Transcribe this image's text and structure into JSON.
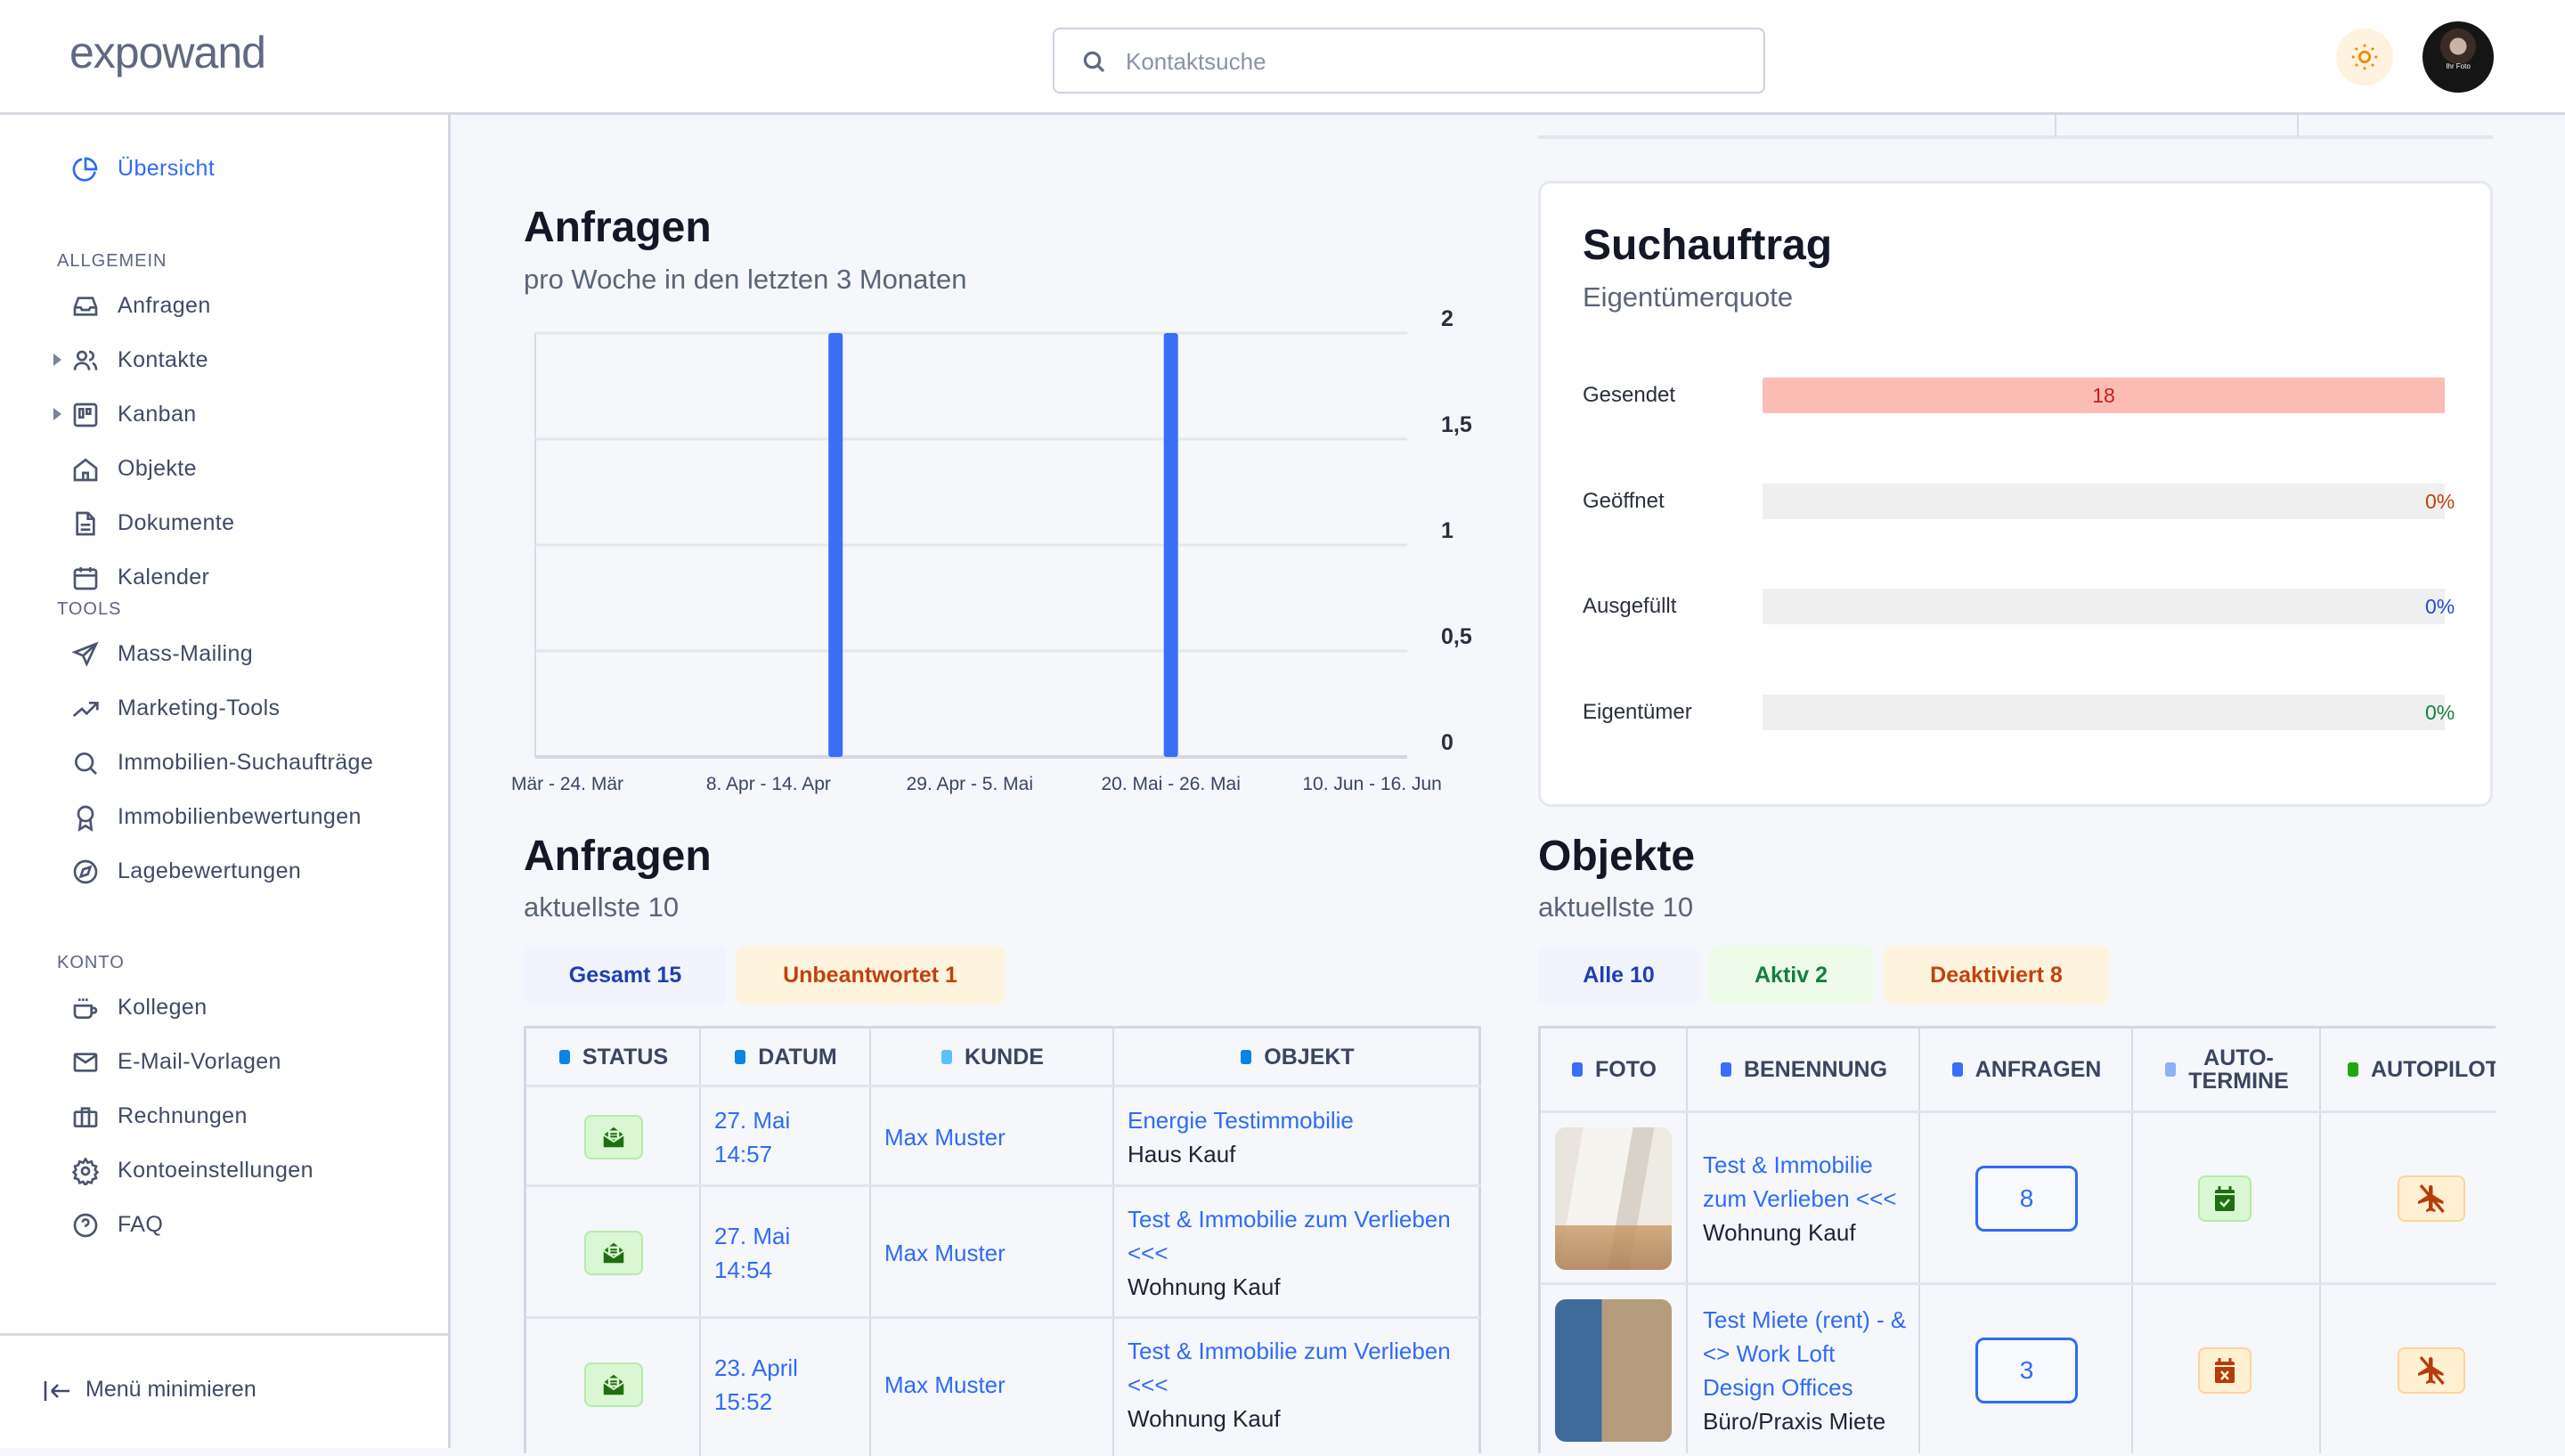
{
  "header": {
    "logo": "expowand",
    "search_placeholder": "Kontaktsuche",
    "theme_icon": "sun-icon",
    "avatar_caption": "Ihr Foto"
  },
  "sidebar": {
    "active": "Übersicht",
    "overview": "Übersicht",
    "sections": [
      {
        "title": "ALLGEMEIN",
        "items": [
          {
            "label": "Anfragen",
            "icon": "inbox-icon"
          },
          {
            "label": "Kontakte",
            "icon": "users-icon",
            "expandable": true
          },
          {
            "label": "Kanban",
            "icon": "kanban-icon",
            "expandable": true
          },
          {
            "label": "Objekte",
            "icon": "home-icon"
          },
          {
            "label": "Dokumente",
            "icon": "document-icon"
          },
          {
            "label": "Kalender",
            "icon": "calendar-icon"
          }
        ]
      },
      {
        "title": "TOOLS",
        "items": [
          {
            "label": "Mass-Mailing",
            "icon": "send-icon"
          },
          {
            "label": "Marketing-Tools",
            "icon": "trending-up-icon"
          },
          {
            "label": "Immobilien-Suchaufträge",
            "icon": "search-icon"
          },
          {
            "label": "Immobilienbewertungen",
            "icon": "award-icon"
          },
          {
            "label": "Lagebewertungen",
            "icon": "compass-icon"
          }
        ]
      },
      {
        "title": "KONTO",
        "items": [
          {
            "label": "Kollegen",
            "icon": "coffee-icon"
          },
          {
            "label": "E-Mail-Vorlagen",
            "icon": "mail-icon"
          },
          {
            "label": "Rechnungen",
            "icon": "briefcase-icon"
          },
          {
            "label": "Kontoeinstellungen",
            "icon": "gear-icon"
          },
          {
            "label": "FAQ",
            "icon": "help-circle-icon"
          }
        ]
      }
    ],
    "minimize_label": "Menü minimieren"
  },
  "anfragen_chart": {
    "title": "Anfragen",
    "subtitle": "pro Woche in den letzten 3 Monaten"
  },
  "chart_data": {
    "type": "bar",
    "categories": [
      "Mär - 24. Mär",
      "",
      "",
      "8. Apr - 14. Apr",
      "",
      "",
      "29. Apr - 5. Mai",
      "",
      "",
      "20. Mai - 26. Mai",
      "",
      "",
      "10. Jun - 16. Jun"
    ],
    "values": [
      0,
      0,
      0,
      0,
      2,
      0,
      0,
      0,
      0,
      2,
      0,
      0,
      0
    ],
    "y_ticks": [
      "0",
      "0,5",
      "1",
      "1,5",
      "2"
    ],
    "ylim": [
      0,
      2
    ],
    "y_axis_side": "right",
    "grid": true,
    "color": "#3b6ef6",
    "title": "",
    "xlabel": "",
    "ylabel": ""
  },
  "suchauftrag": {
    "title": "Suchauftrag",
    "subtitle": "Eigentümerquote",
    "rows": [
      {
        "label": "Gesendet",
        "value": "18",
        "fill": 1.0,
        "color": "#c81e1e"
      },
      {
        "label": "Geöffnet",
        "value": "0%",
        "fill": 0,
        "color": "#c2410c"
      },
      {
        "label": "Ausgefüllt",
        "value": "0%",
        "fill": 0,
        "color": "#1d4ed8"
      },
      {
        "label": "Eigentümer",
        "value": "0%",
        "fill": 0,
        "color": "#15803d"
      }
    ]
  },
  "anfragen_list": {
    "title": "Anfragen",
    "subtitle": "aktuellste 10",
    "tabs": [
      {
        "label": "Gesamt 15",
        "color": "#1e40af",
        "bg": "#f1f4fc"
      },
      {
        "label": "Unbeantwortet 1",
        "color": "#c2410c",
        "bg": "#fef4de"
      }
    ],
    "columns": [
      "STATUS",
      "DATUM",
      "KUNDE",
      "OBJEKT"
    ],
    "rows": [
      {
        "status": "mail-open-icon",
        "date": "27. Mai",
        "time": "14:57",
        "kunde": "Max Muster",
        "objekt": "Energie Testimmobilie",
        "typ": "Haus Kauf"
      },
      {
        "status": "mail-open-icon",
        "date": "27. Mai",
        "time": "14:54",
        "kunde": "Max Muster",
        "objekt": "Test & Immobilie zum Verlieben <<<",
        "typ": "Wohnung Kauf"
      },
      {
        "status": "mail-open-icon",
        "date": "23. April",
        "time": "15:52",
        "kunde": "Max Muster",
        "objekt": "Test & Immobilie zum Verlieben <<<",
        "typ": "Wohnung Kauf"
      }
    ]
  },
  "objekte": {
    "title": "Objekte",
    "subtitle": "aktuellste 10",
    "tabs": [
      {
        "label": "Alle 10",
        "color": "#1e40af",
        "bg": "#f1f4fc"
      },
      {
        "label": "Aktiv 2",
        "color": "#15803d",
        "bg": "#eefbe9"
      },
      {
        "label": "Deaktiviert 8",
        "color": "#c2410c",
        "bg": "#fef4de"
      }
    ],
    "columns": [
      "FOTO",
      "BENENNUNG",
      "ANFRAGEN",
      "AUTO-\nTERMINE",
      "AUTOPILOT"
    ],
    "rows": [
      {
        "name": "Test & Immobilie zum Verlieben <<<",
        "typ": "Wohnung Kauf",
        "anfragen": "8",
        "auto_termine": "calendar-check-icon",
        "autopilot": "autopilot-off-icon"
      },
      {
        "name": "Test Miete (rent) - & <> Work Loft Design Offices",
        "typ": "Büro/Praxis Miete",
        "anfragen": "3",
        "auto_termine": "calendar-x-icon",
        "autopilot": "autopilot-off-icon"
      }
    ]
  }
}
